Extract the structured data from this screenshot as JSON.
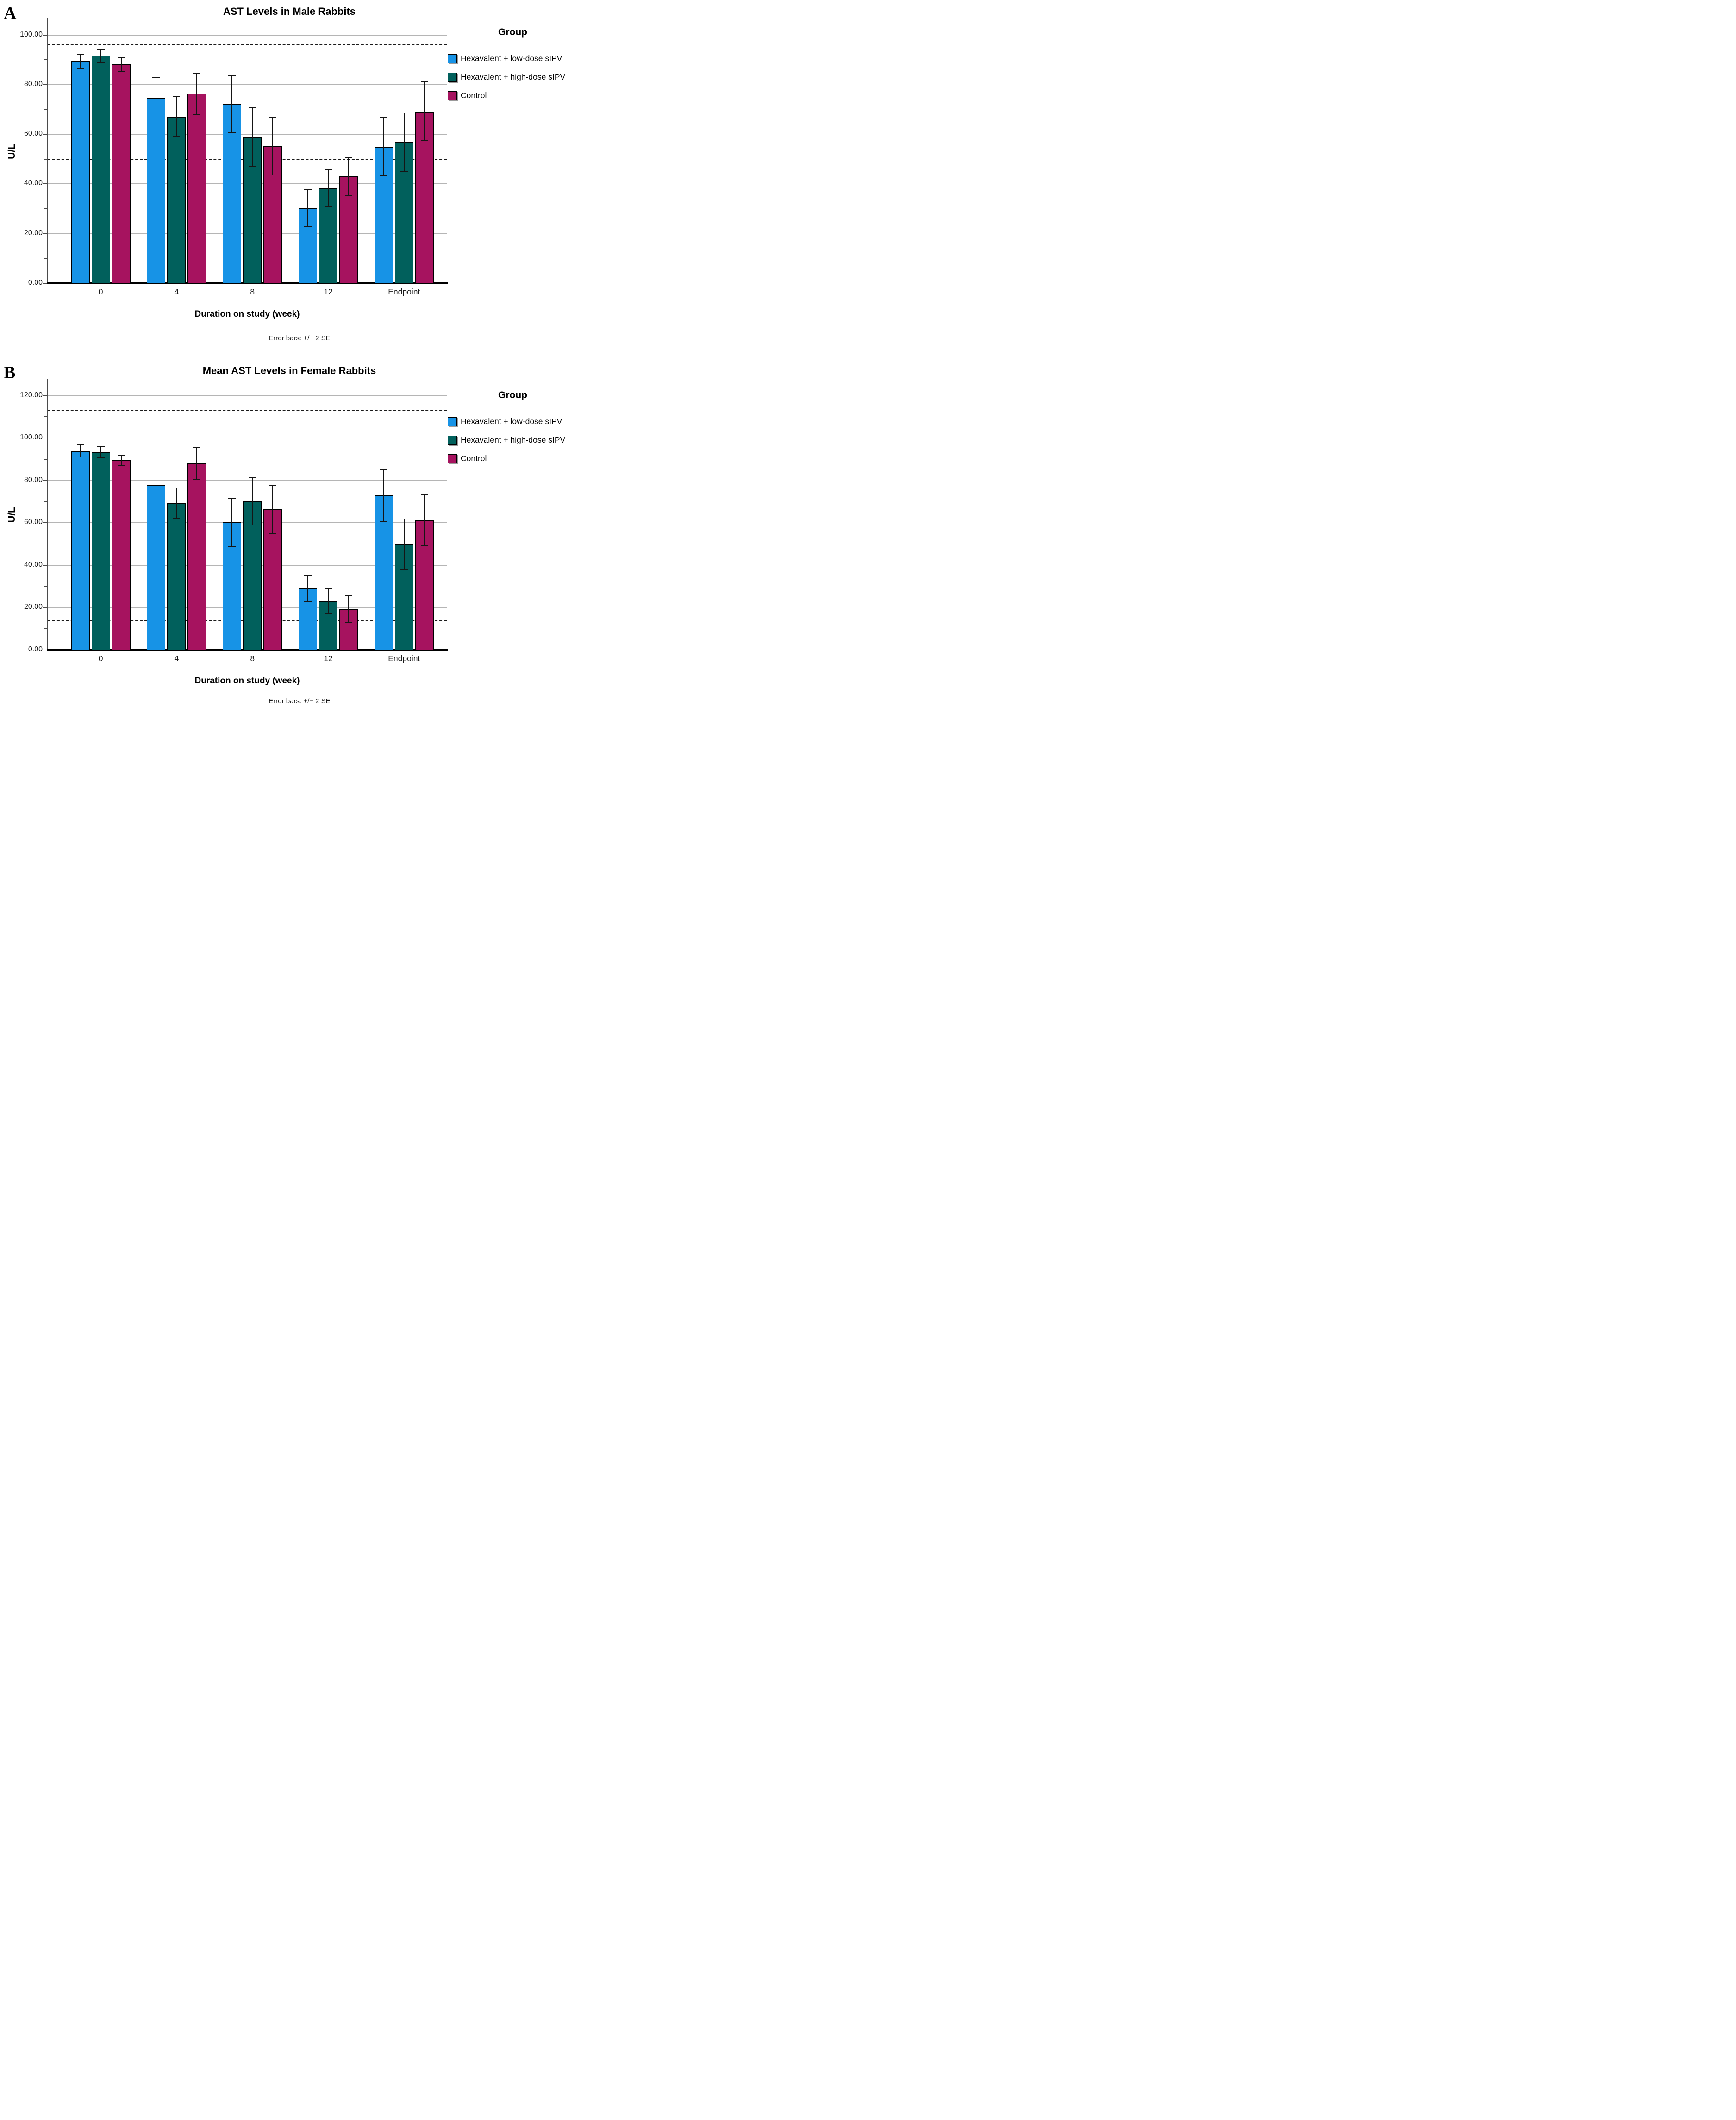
{
  "legend": {
    "title": "Group",
    "items": [
      {
        "label": "Hexavalent + low-dose sIPV",
        "color": "#1793E6"
      },
      {
        "label": "Hexavalent + high-dose sIPV",
        "color": "#01605C"
      },
      {
        "label": "Control",
        "color": "#A6135F"
      }
    ]
  },
  "chart_data": [
    {
      "type": "bar",
      "panel_label": "A",
      "title": "AST Levels in Male Rabbits",
      "xlabel": "Duration on study (week)",
      "ylabel": "U/L",
      "footnote": "Error bars: +/− 2 SE",
      "legend_title": "Group",
      "legend_position": "top-right",
      "grid": true,
      "categories": [
        "0",
        "4",
        "8",
        "12",
        "Endpoint"
      ],
      "ylim": [
        0,
        107
      ],
      "yticks": [
        0,
        20,
        40,
        60,
        80,
        100
      ],
      "ytick_labels": [
        "0.00",
        "20.00",
        "40.00",
        "60.00",
        "80.00",
        "100.00"
      ],
      "minor_tick_step": 10,
      "reference_lines_dashed": [
        96,
        50
      ],
      "series": [
        {
          "name": "Hexavalent + low-dose sIPV",
          "color": "#1793E6",
          "values": [
            89.4,
            74.5,
            72.1,
            30.2,
            55.0
          ],
          "se2": [
            2.9,
            8.3,
            11.6,
            7.4,
            11.8
          ]
        },
        {
          "name": "Hexavalent + high-dose sIPV",
          "color": "#01605C",
          "values": [
            91.7,
            67.2,
            58.9,
            38.3,
            56.8
          ],
          "se2": [
            2.7,
            8.2,
            11.8,
            7.5,
            11.8
          ]
        },
        {
          "name": "Control",
          "color": "#A6135F",
          "values": [
            88.1,
            76.4,
            55.2,
            43.0,
            69.2
          ],
          "se2": [
            2.8,
            8.3,
            11.6,
            7.5,
            11.8
          ]
        }
      ]
    },
    {
      "type": "bar",
      "panel_label": "B",
      "title": "Mean AST Levels in Female Rabbits",
      "xlabel": "Duration on study (week)",
      "ylabel": "U/L",
      "footnote": "Error bars: +/− 2 SE",
      "legend_title": "Group",
      "legend_position": "top-right",
      "grid": true,
      "categories": [
        "0",
        "4",
        "8",
        "12",
        "Endpoint"
      ],
      "ylim": [
        0,
        128
      ],
      "yticks": [
        0,
        20,
        40,
        60,
        80,
        100,
        120
      ],
      "ytick_labels": [
        "0.00",
        "20.00",
        "40.00",
        "60.00",
        "80.00",
        "100.00",
        "120.00"
      ],
      "minor_tick_step": 10,
      "reference_lines_dashed": [
        113,
        14
      ],
      "series": [
        {
          "name": "Hexavalent + low-dose sIPV",
          "color": "#1793E6",
          "values": [
            94.0,
            78.0,
            60.3,
            29.0,
            73.0
          ],
          "se2": [
            2.9,
            7.3,
            11.3,
            6.2,
            12.2
          ]
        },
        {
          "name": "Hexavalent + high-dose sIPV",
          "color": "#01605C",
          "values": [
            93.5,
            69.3,
            70.2,
            23.0,
            50.0
          ],
          "se2": [
            2.7,
            7.2,
            11.2,
            6.0,
            11.9
          ]
        },
        {
          "name": "Control",
          "color": "#A6135F",
          "values": [
            89.5,
            88.0,
            66.3,
            19.3,
            61.2
          ],
          "se2": [
            2.4,
            7.4,
            11.3,
            6.2,
            12.1
          ]
        }
      ]
    }
  ]
}
